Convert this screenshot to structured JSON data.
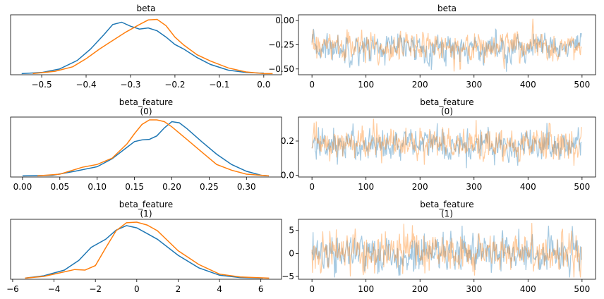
{
  "chart_data": [
    {
      "type": "line",
      "kind": "density",
      "title": "beta",
      "subtitle": "",
      "xlim": [
        -0.57,
        0.04
      ],
      "ylim": [
        0,
        1.05
      ],
      "xticks": [
        -0.5,
        -0.4,
        -0.3,
        -0.2,
        -0.1,
        0.0
      ],
      "xtick_labels": [
        "−0.5",
        "−0.4",
        "−0.3",
        "−0.2",
        "−0.1",
        "0.0"
      ],
      "yticks": [],
      "ytick_labels": [],
      "series": [
        {
          "color": "#1f77b4",
          "x": [
            -0.545,
            -0.5,
            -0.46,
            -0.42,
            -0.39,
            -0.36,
            -0.34,
            -0.32,
            -0.3,
            -0.28,
            -0.26,
            -0.24,
            -0.22,
            -0.2,
            -0.18,
            -0.15,
            -0.12,
            -0.08,
            -0.04,
            -0.01,
            0.0
          ],
          "y": [
            0.02,
            0.04,
            0.1,
            0.25,
            0.45,
            0.7,
            0.88,
            0.92,
            0.85,
            0.8,
            0.82,
            0.77,
            0.66,
            0.53,
            0.45,
            0.3,
            0.18,
            0.08,
            0.04,
            0.03,
            0.03
          ]
        },
        {
          "color": "#ff7f0e",
          "x": [
            -0.52,
            -0.47,
            -0.43,
            -0.4,
            -0.37,
            -0.34,
            -0.31,
            -0.28,
            -0.26,
            -0.24,
            -0.22,
            -0.2,
            -0.18,
            -0.15,
            -0.12,
            -0.08,
            -0.04,
            0.0,
            0.02
          ],
          "y": [
            0.02,
            0.06,
            0.14,
            0.28,
            0.45,
            0.6,
            0.75,
            0.88,
            0.96,
            0.97,
            0.86,
            0.66,
            0.52,
            0.35,
            0.24,
            0.12,
            0.05,
            0.02,
            0.02
          ]
        }
      ]
    },
    {
      "type": "line",
      "kind": "trace",
      "title": "beta",
      "subtitle": "",
      "xlim": [
        -25,
        525
      ],
      "ylim": [
        -0.56,
        0.06
      ],
      "xticks": [
        0,
        100,
        200,
        300,
        400,
        500
      ],
      "xtick_labels": [
        "0",
        "100",
        "200",
        "300",
        "400",
        "500"
      ],
      "yticks": [
        0.0,
        -0.25,
        -0.5
      ],
      "ytick_labels": [
        "0.00",
        "−0.25",
        "−0.50"
      ],
      "n_draws": 500,
      "series": [
        {
          "color": "#1f77b4",
          "opacity": 0.4,
          "center": -0.28,
          "spread": 0.07,
          "min": -0.55,
          "max": 0.01
        },
        {
          "color": "#ff7f0e",
          "opacity": 0.4,
          "center": -0.27,
          "spread": 0.07,
          "min": -0.53,
          "max": 0.02
        }
      ]
    },
    {
      "type": "line",
      "kind": "density",
      "title": "beta_feature",
      "subtitle": "(0)",
      "xlim": [
        -0.016,
        0.347
      ],
      "ylim": [
        0,
        1.05
      ],
      "xticks": [
        0.0,
        0.05,
        0.1,
        0.15,
        0.2,
        0.25,
        0.3
      ],
      "xtick_labels": [
        "0.00",
        "0.05",
        "0.10",
        "0.15",
        "0.20",
        "0.25",
        "0.30"
      ],
      "yticks": [],
      "ytick_labels": [],
      "series": [
        {
          "color": "#1f77b4",
          "x": [
            0.0,
            0.04,
            0.07,
            0.1,
            0.12,
            0.14,
            0.15,
            0.16,
            0.17,
            0.18,
            0.19,
            0.2,
            0.21,
            0.22,
            0.24,
            0.26,
            0.28,
            0.3,
            0.32,
            0.33
          ],
          "y": [
            0.02,
            0.03,
            0.1,
            0.18,
            0.32,
            0.52,
            0.62,
            0.65,
            0.66,
            0.72,
            0.86,
            0.97,
            0.95,
            0.85,
            0.62,
            0.4,
            0.22,
            0.1,
            0.03,
            0.02
          ]
        },
        {
          "color": "#ff7f0e",
          "x": [
            0.02,
            0.05,
            0.08,
            0.1,
            0.12,
            0.14,
            0.15,
            0.16,
            0.17,
            0.18,
            0.19,
            0.2,
            0.21,
            0.22,
            0.24,
            0.26,
            0.28,
            0.3,
            0.33
          ],
          "y": [
            0.02,
            0.05,
            0.17,
            0.22,
            0.33,
            0.58,
            0.76,
            0.92,
            1.0,
            1.0,
            0.97,
            0.88,
            0.77,
            0.66,
            0.44,
            0.22,
            0.12,
            0.05,
            0.02
          ]
        }
      ]
    },
    {
      "type": "line",
      "kind": "trace",
      "title": "beta_feature",
      "subtitle": "(0)",
      "xlim": [
        -25,
        525
      ],
      "ylim": [
        -0.01,
        0.34
      ],
      "xticks": [
        0,
        100,
        200,
        300,
        400,
        500
      ],
      "xtick_labels": [
        "0",
        "100",
        "200",
        "300",
        "400",
        "500"
      ],
      "yticks": [
        0.0,
        0.2
      ],
      "ytick_labels": [
        "0.0",
        "0.2"
      ],
      "n_draws": 500,
      "series": [
        {
          "color": "#1f77b4",
          "opacity": 0.4,
          "center": 0.18,
          "spread": 0.045,
          "min": 0.0,
          "max": 0.33
        },
        {
          "color": "#ff7f0e",
          "opacity": 0.4,
          "center": 0.18,
          "spread": 0.045,
          "min": 0.03,
          "max": 0.33
        }
      ]
    },
    {
      "type": "line",
      "kind": "density",
      "title": "beta_feature",
      "subtitle": "(1)",
      "xlim": [
        -6.1,
        7.0
      ],
      "ylim": [
        0,
        1.05
      ],
      "xticks": [
        -6,
        -4,
        -2,
        0,
        2,
        4,
        6
      ],
      "xtick_labels": [
        "−6",
        "−4",
        "−2",
        "0",
        "2",
        "4",
        "6"
      ],
      "yticks": [],
      "ytick_labels": [],
      "series": [
        {
          "color": "#1f77b4",
          "x": [
            -5.4,
            -4.5,
            -3.5,
            -2.8,
            -2.2,
            -1.5,
            -1.0,
            -0.5,
            0.0,
            0.5,
            1.0,
            2.0,
            3.0,
            4.0,
            5.0,
            6.1
          ],
          "y": [
            0.02,
            0.06,
            0.16,
            0.33,
            0.56,
            0.7,
            0.86,
            0.94,
            0.9,
            0.8,
            0.7,
            0.42,
            0.2,
            0.07,
            0.03,
            0.02
          ]
        },
        {
          "color": "#ff7f0e",
          "x": [
            -5.4,
            -4.5,
            -3.5,
            -3.0,
            -2.5,
            -2.0,
            -1.5,
            -1.0,
            -0.5,
            0.0,
            0.5,
            1.0,
            2.0,
            3.0,
            4.0,
            5.0,
            6.4
          ],
          "y": [
            0.02,
            0.05,
            0.13,
            0.17,
            0.16,
            0.24,
            0.55,
            0.85,
            0.99,
            1.0,
            0.95,
            0.85,
            0.5,
            0.26,
            0.09,
            0.04,
            0.02
          ]
        }
      ]
    },
    {
      "type": "line",
      "kind": "trace",
      "title": "beta_feature",
      "subtitle": "(1)",
      "xlim": [
        -25,
        525
      ],
      "ylim": [
        -5.6,
        7.4
      ],
      "xticks": [
        0,
        100,
        200,
        300,
        400,
        500
      ],
      "xtick_labels": [
        "0",
        "100",
        "200",
        "300",
        "400",
        "500"
      ],
      "yticks": [
        5,
        0,
        -5
      ],
      "ytick_labels": [
        "5",
        "0",
        "−5"
      ],
      "n_draws": 500,
      "series": [
        {
          "color": "#1f77b4",
          "opacity": 0.4,
          "center": 0.0,
          "spread": 2.0,
          "min": -5.2,
          "max": 6.0
        },
        {
          "color": "#ff7f0e",
          "opacity": 0.4,
          "center": 0.0,
          "spread": 2.0,
          "min": -5.2,
          "max": 6.6
        }
      ]
    }
  ]
}
